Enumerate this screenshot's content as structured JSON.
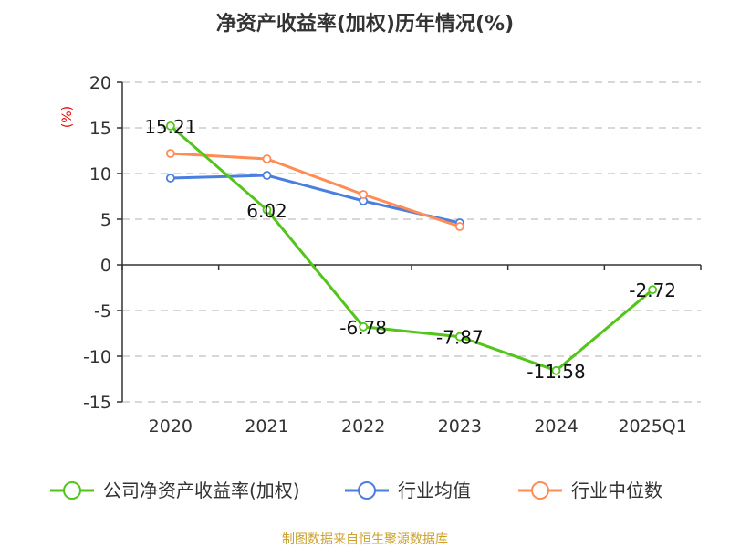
{
  "chart_data": {
    "type": "line",
    "title": "净资产收益率(加权)历年情况(%)",
    "ylabel": "(%)",
    "xlabel": "",
    "categories": [
      "2020",
      "2021",
      "2022",
      "2023",
      "2024",
      "2025Q1"
    ],
    "ylim": [
      -15,
      20
    ],
    "yticks": [
      20,
      15,
      10,
      5,
      0,
      -5,
      -10,
      -15
    ],
    "grid": true,
    "legend_position": "bottom",
    "series": [
      {
        "name": "公司净资产收益率(加权)",
        "color": "#52c41a",
        "values": [
          15.21,
          6.02,
          -6.78,
          -7.87,
          -11.58,
          -2.72
        ],
        "labels": [
          "15.21",
          "6.02",
          "-6.78",
          "-7.87",
          "-11.58",
          "-2.72"
        ]
      },
      {
        "name": "行业均值",
        "color": "#4a7fe0",
        "values": [
          9.5,
          9.8,
          7.0,
          4.6,
          null,
          null
        ]
      },
      {
        "name": "行业中位数",
        "color": "#ff8c55",
        "values": [
          12.2,
          11.6,
          7.7,
          4.2,
          null,
          null
        ]
      }
    ],
    "source": "制图数据来自恒生聚源数据库"
  }
}
